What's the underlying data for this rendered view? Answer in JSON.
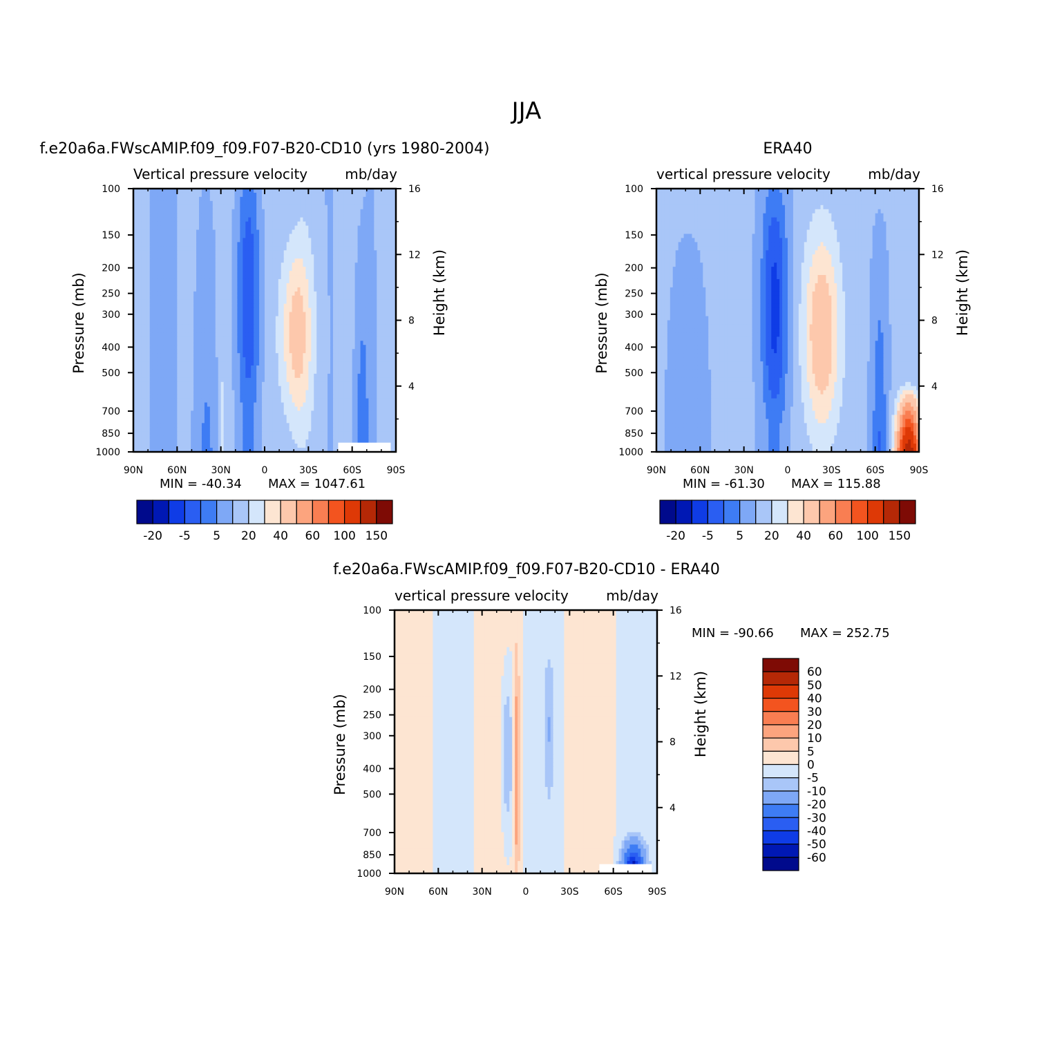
{
  "figure_title": "JJA",
  "chart_data": [
    {
      "type": "heatmap",
      "panel_title": "f.e20a6a.FWscAMIP.f09_f09.F07-B20-CD10 (yrs 1980-2004)",
      "variable_left": "Vertical pressure velocity",
      "variable_right": "mb/day",
      "ylabel_left": "Pressure (mb)",
      "ylabel_right": "Height (km)",
      "x_ticks": [
        "90N",
        "60N",
        "30N",
        "0",
        "30S",
        "60S",
        "90S"
      ],
      "pressure_ticks": [
        "100",
        "150",
        "200",
        "250",
        "300",
        "400",
        "500",
        "700",
        "850",
        "1000"
      ],
      "height_ticks": [
        "16",
        "12",
        "8",
        "4"
      ],
      "min_label": "MIN = -40.34",
      "max_label": "MAX = 1047.61",
      "contour_levels": [
        -20,
        -15,
        -10,
        -5,
        0,
        5,
        10,
        15,
        20,
        30,
        40,
        50,
        60,
        80,
        100,
        150
      ],
      "colorbar_labels": [
        "-20",
        "-5",
        "5",
        "20",
        "40",
        "60",
        "100",
        "150"
      ]
    },
    {
      "type": "heatmap",
      "panel_title": "ERA40",
      "variable_left": "vertical pressure velocity",
      "variable_right": "mb/day",
      "ylabel_left": "Pressure (mb)",
      "ylabel_right": "Height (km)",
      "x_ticks": [
        "90N",
        "60N",
        "30N",
        "0",
        "30S",
        "60S",
        "90S"
      ],
      "pressure_ticks": [
        "100",
        "150",
        "200",
        "250",
        "300",
        "400",
        "500",
        "700",
        "850",
        "1000"
      ],
      "height_ticks": [
        "16",
        "12",
        "8",
        "4"
      ],
      "min_label": "MIN = -61.30",
      "max_label": "MAX = 115.88",
      "contour_levels": [
        -20,
        -15,
        -10,
        -5,
        0,
        5,
        10,
        15,
        20,
        30,
        40,
        50,
        60,
        80,
        100,
        150
      ],
      "colorbar_labels": [
        "-20",
        "-5",
        "5",
        "20",
        "40",
        "60",
        "100",
        "150"
      ]
    },
    {
      "type": "heatmap",
      "panel_title": "f.e20a6a.FWscAMIP.f09_f09.F07-B20-CD10 - ERA40",
      "variable_left": "vertical pressure velocity",
      "variable_right": "mb/day",
      "ylabel_left": "Pressure (mb)",
      "ylabel_right": "Height (km)",
      "x_ticks": [
        "90N",
        "60N",
        "30N",
        "0",
        "30S",
        "60S",
        "90S"
      ],
      "pressure_ticks": [
        "100",
        "150",
        "200",
        "250",
        "300",
        "400",
        "500",
        "700",
        "850",
        "1000"
      ],
      "height_ticks": [
        "16",
        "12",
        "8",
        "4"
      ],
      "min_label": "MIN = -90.66",
      "max_label": "MAX = 252.75",
      "contour_levels": [
        -60,
        -50,
        -40,
        -30,
        -20,
        -10,
        -5,
        0,
        5,
        10,
        20,
        30,
        40,
        50,
        60
      ],
      "colorbar_labels": [
        "60",
        "50",
        "40",
        "30",
        "20",
        "10",
        "5",
        "0",
        "-5",
        "-10",
        "-20",
        "-30",
        "-40",
        "-50",
        "-60"
      ]
    }
  ],
  "colors": {
    "palette_16": [
      "#000a8c",
      "#0018b4",
      "#0f3ce6",
      "#2a5ef2",
      "#3e7cf4",
      "#7ea8f6",
      "#a9c6f8",
      "#d4e6fb",
      "#fde5d2",
      "#fdc8ac",
      "#fca47e",
      "#f97e52",
      "#f3541f",
      "#de3906",
      "#b52806",
      "#7e0b05"
    ],
    "palette_16_diff": [
      "#000a8c",
      "#0018b4",
      "#0f3ce6",
      "#2a5ef2",
      "#3e7cf4",
      "#7ea8f6",
      "#a9c6f8",
      "#d4e6fb",
      "#fde5d2",
      "#fdc8ac",
      "#fca47e",
      "#f97e52",
      "#f3541f",
      "#de3906",
      "#b52806",
      "#7e0b05"
    ]
  }
}
